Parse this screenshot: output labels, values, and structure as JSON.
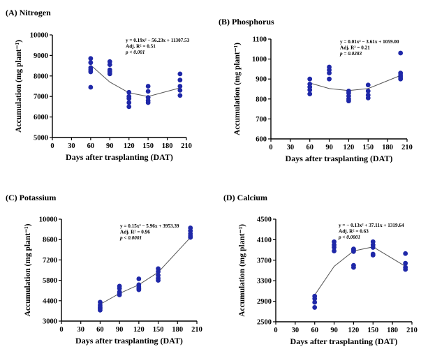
{
  "chart_data": [
    {
      "type": "scatter",
      "title": "(A) Nitrogen",
      "xlabel": "Days after trasplanting (DAT)",
      "ylabel": "Accumulation (mg plant⁻¹)",
      "xlim": [
        0,
        210
      ],
      "ylim": [
        5000,
        10000
      ],
      "xticks": [
        "0",
        "30",
        "60",
        "90",
        "120",
        "150",
        "180",
        "210"
      ],
      "yticks": [
        "5000",
        "6000",
        "7000",
        "8000",
        "9000",
        "10000"
      ],
      "annotations": [
        "y = 0.19x² − 56.23x + 11307.53",
        "Adj. R² = 0.51",
        "p < 0.001"
      ],
      "fit": {
        "x": [
          60,
          90,
          120,
          150,
          200
        ],
        "y": [
          8530,
          7700,
          7180,
          7000,
          7420
        ]
      },
      "points": {
        "x": [
          60,
          60,
          60,
          60,
          60,
          60,
          90,
          90,
          90,
          90,
          90,
          120,
          120,
          120,
          120,
          120,
          150,
          150,
          150,
          150,
          150,
          200,
          200,
          200,
          200,
          200
        ],
        "y": [
          8850,
          8650,
          8400,
          8300,
          8200,
          7450,
          8700,
          8550,
          8300,
          8200,
          8100,
          7200,
          7000,
          6900,
          6700,
          6500,
          7500,
          7250,
          6950,
          6800,
          6700,
          8100,
          7800,
          7500,
          7300,
          7050
        ]
      }
    },
    {
      "type": "scatter",
      "title": "(B) Phosphorus",
      "xlabel": "Days after trasplanting (DAT)",
      "ylabel": "Accumulation (mg plant⁻¹)",
      "xlim": [
        0,
        210
      ],
      "ylim": [
        600,
        1100
      ],
      "xticks": [
        "0",
        "30",
        "60",
        "90",
        "120",
        "150",
        "180",
        "210"
      ],
      "yticks": [
        "600",
        "700",
        "800",
        "900",
        "1000",
        "1100"
      ],
      "annotations": [
        "y = 0.01x² − 3.61x + 1059.00",
        "Adj. R² = 0.21",
        "p = 0.0283"
      ],
      "fit": {
        "x": [
          60,
          90,
          120,
          150,
          200
        ],
        "y": [
          880,
          852,
          842,
          852,
          918
        ]
      },
      "points": {
        "x": [
          60,
          60,
          60,
          60,
          60,
          90,
          90,
          90,
          90,
          120,
          120,
          120,
          120,
          120,
          150,
          150,
          150,
          150,
          200,
          200,
          200,
          200,
          200
        ],
        "y": [
          900,
          875,
          860,
          845,
          825,
          960,
          945,
          930,
          900,
          840,
          830,
          815,
          800,
          790,
          870,
          840,
          820,
          805,
          1030,
          930,
          920,
          910,
          900
        ]
      }
    },
    {
      "type": "scatter",
      "title": "(C) Potassium",
      "xlabel": "Days after trasplanting (DAT)",
      "ylabel": "Accumulation (mg plant⁻¹)",
      "xlim": [
        0,
        210
      ],
      "ylim": [
        3000,
        10000
      ],
      "xticks": [
        "0",
        "30",
        "60",
        "90",
        "120",
        "150",
        "180",
        "210"
      ],
      "yticks": [
        "3000",
        "4400",
        "5800",
        "7200",
        "8600",
        "10000"
      ],
      "annotations": [
        "y = 0.15x² − 5.96x + 3953.39",
        "Adj. R² = 0.96",
        "p < 0.0001"
      ],
      "fit": {
        "x": [
          60,
          90,
          120,
          150,
          200
        ],
        "y": [
          4150,
          4900,
          5500,
          6350,
          8750
        ]
      },
      "points": {
        "x": [
          60,
          60,
          60,
          60,
          60,
          90,
          90,
          90,
          90,
          90,
          120,
          120,
          120,
          120,
          120,
          150,
          150,
          150,
          150,
          150,
          200,
          200,
          200,
          200,
          200
        ],
        "y": [
          4300,
          4100,
          3950,
          3850,
          3750,
          5400,
          5250,
          5000,
          4900,
          4800,
          5900,
          5500,
          5350,
          5250,
          5150,
          6600,
          6400,
          6150,
          5950,
          5800,
          9400,
          9200,
          9000,
          8850,
          8750
        ]
      }
    },
    {
      "type": "scatter",
      "title": "(D) Calcium",
      "xlabel": "Days after trasplanting (DAT)",
      "ylabel": "Accumulation (mg plant⁻¹)",
      "xlim": [
        0,
        210
      ],
      "ylim": [
        2500,
        4500
      ],
      "xticks": [
        "0",
        "30",
        "60",
        "90",
        "120",
        "150",
        "180",
        "210"
      ],
      "yticks": [
        "2500",
        "2900",
        "3300",
        "3700",
        "4100",
        "4500"
      ],
      "annotations": [
        "y = − 0.13x² + 37.11x + 1319.64",
        "Adj. R² = 0.63",
        "p < 0.0001"
      ],
      "fit": {
        "x": [
          60,
          90,
          120,
          150,
          200
        ],
        "y": [
          3020,
          3580,
          3880,
          3960,
          3580
        ]
      },
      "points": {
        "x": [
          60,
          60,
          60,
          60,
          90,
          90,
          90,
          90,
          120,
          120,
          120,
          120,
          120,
          150,
          150,
          150,
          150,
          150,
          200,
          200,
          200,
          200
        ],
        "y": [
          3000,
          2950,
          2880,
          2780,
          4060,
          4000,
          3950,
          3880,
          3920,
          3900,
          3870,
          3600,
          3560,
          4060,
          4000,
          3950,
          3820,
          3800,
          3830,
          3640,
          3560,
          3520
        ]
      }
    }
  ],
  "colors": {
    "points": "#1f28a8",
    "fit": "#555555",
    "axes": "#000000"
  }
}
